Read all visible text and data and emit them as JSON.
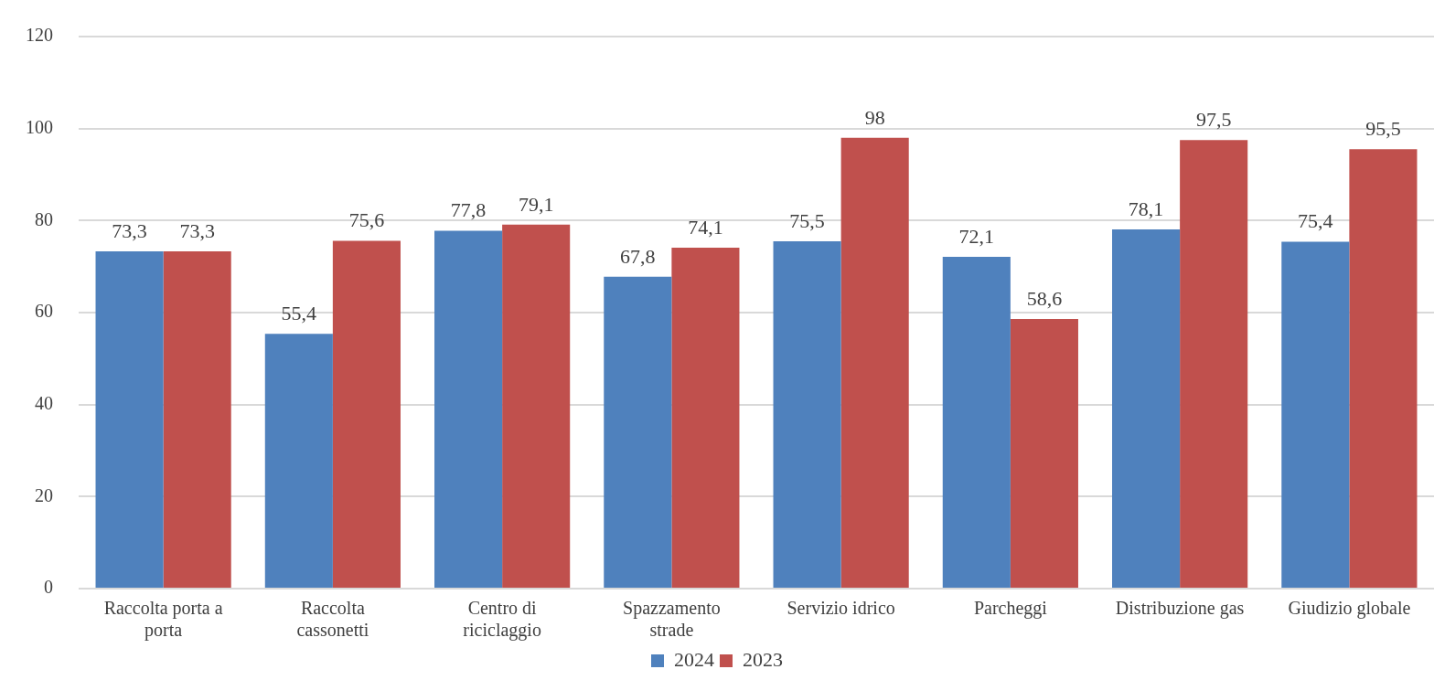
{
  "chart_data": {
    "type": "bar",
    "categories": [
      "Raccolta porta a porta",
      "Raccolta cassonetti",
      "Centro di riciclaggio",
      "Spazzamento strade",
      "Servizio idrico",
      "Parcheggi",
      "Distribuzione gas",
      "Giudizio globale"
    ],
    "series": [
      {
        "name": "2024",
        "color": "#4f81bd",
        "values": [
          73.3,
          55.4,
          77.8,
          67.8,
          75.5,
          72.1,
          78.1,
          75.4
        ],
        "value_labels": [
          "73,3",
          "55,4",
          "77,8",
          "67,8",
          "75,5",
          "72,1",
          "78,1",
          "75,4"
        ]
      },
      {
        "name": "2023",
        "color": "#c0504d",
        "values": [
          73.3,
          75.6,
          79.1,
          74.1,
          98,
          58.6,
          97.5,
          95.5
        ],
        "value_labels": [
          "73,3",
          "75,6",
          "79,1",
          "74,1",
          "98",
          "58,6",
          "97,5",
          "95,5"
        ]
      }
    ],
    "ylim": [
      0,
      120
    ],
    "yticks": [
      0,
      20,
      40,
      60,
      80,
      100,
      120
    ],
    "grid": "y",
    "legend": "bottom"
  }
}
